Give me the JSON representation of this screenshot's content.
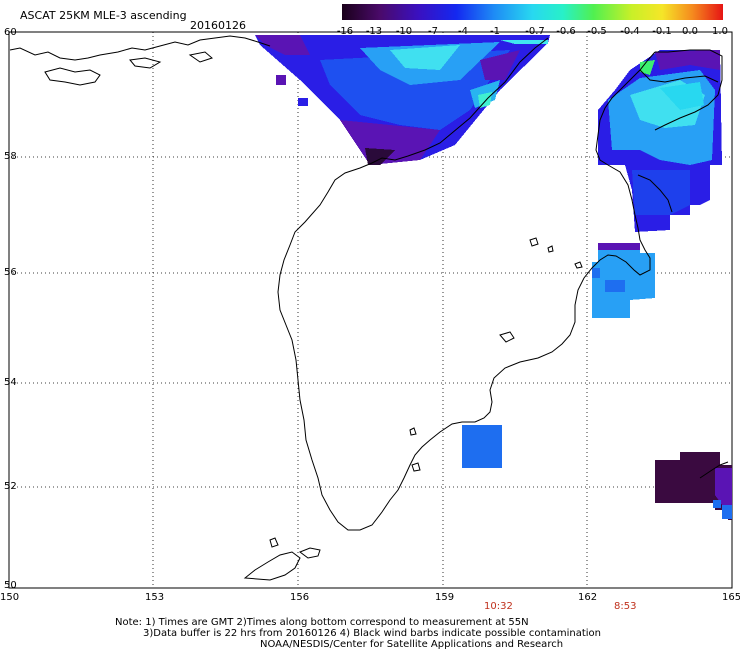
{
  "header": {
    "title": "ASCAT 25KM MLE-3 ascending",
    "date": "20160126"
  },
  "colorbar": {
    "ticks": [
      "-16",
      "-13",
      "-10",
      "-7",
      "-4",
      "-1",
      "-0.7",
      "-0.6",
      "-0.5",
      "-0.4",
      "-0.1",
      "0.0",
      "1.0"
    ]
  },
  "axes": {
    "lat_labels": [
      "60",
      "58",
      "56",
      "54",
      "52",
      "50"
    ],
    "lon_labels": [
      "150",
      "153",
      "156",
      "159",
      "162",
      "165"
    ]
  },
  "times": {
    "t1": "10:32",
    "t2": "8:53"
  },
  "footer": {
    "line1": "Note: 1) Times are GMT 2)Times along bottom correspond to measurement at 55N",
    "line2": "3)Data buffer is 22 hrs from 20160126 4) Black wind barbs indicate possible contamination",
    "line3": "NOAA/NESDIS/Center for Satellite Applications and Research"
  },
  "colors": {
    "dark_purple": "#3a0a40",
    "purple": "#5a14b4",
    "blue": "#1e32e6",
    "mid_blue": "#1e6ef0",
    "light_blue": "#28a0f5",
    "cyan": "#40e6f0",
    "green": "#3cf070"
  }
}
